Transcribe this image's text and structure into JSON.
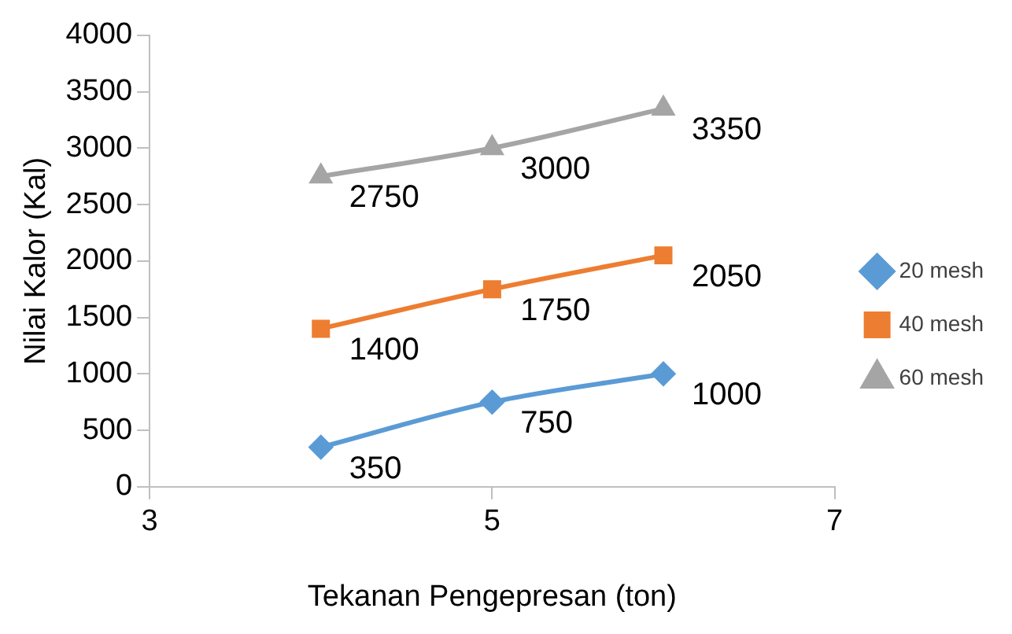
{
  "chart_data": {
    "type": "line",
    "xlabel": "Tekanan Pengepresan (ton)",
    "ylabel": "Nilai Kalor (Kal)",
    "x": [
      4,
      5,
      6
    ],
    "series": [
      {
        "name": "20 mesh",
        "color": "#5b9bd5",
        "marker": "diamond",
        "values": [
          350,
          750,
          1000
        ]
      },
      {
        "name": "40 mesh",
        "color": "#ed7d31",
        "marker": "square",
        "values": [
          1400,
          1750,
          2050
        ]
      },
      {
        "name": "60 mesh",
        "color": "#a5a5a5",
        "marker": "triangle",
        "values": [
          2750,
          3000,
          3350
        ]
      }
    ],
    "xlim": [
      3,
      7
    ],
    "xticks": [
      3,
      5,
      7
    ],
    "ylim": [
      0,
      4000
    ],
    "yticks": [
      0,
      500,
      1000,
      1500,
      2000,
      2500,
      3000,
      3500,
      4000
    ],
    "grid": false,
    "legend": "right",
    "data_labels": true,
    "line_style": "solid"
  }
}
